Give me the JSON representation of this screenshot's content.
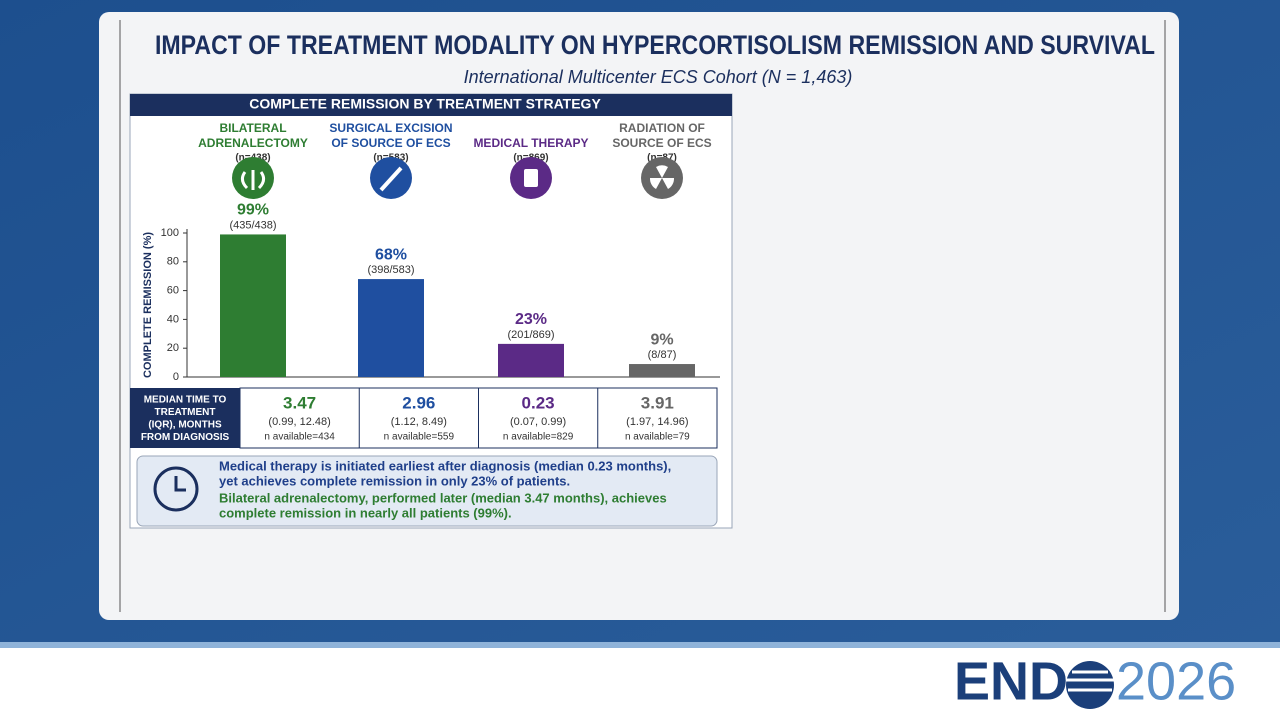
{
  "slide": {
    "title": "IMPACT OF TREATMENT MODALITY ON HYPERCORTISOLISM REMISSION AND SURVIVAL",
    "subtitle": "International Multicenter ECS Cohort (N = 1,463)"
  },
  "chart_data": {
    "type": "bar",
    "title": "COMPLETE REMISSION BY TREATMENT STRATEGY",
    "y_label": "COMPLETE REMISSION (%)",
    "categories": [
      [
        "BILATERAL",
        "ADRENALECTOMY"
      ],
      [
        "SURGICAL EXCISION",
        "OF SOURCE OF ECS"
      ],
      [
        "MEDICAL THERAPY"
      ],
      [
        "RADIATION OF",
        "SOURCE OF ECS"
      ]
    ],
    "category_counts": [
      "(n=438)",
      "(n=583)",
      "(n=869)",
      "(n=87)"
    ],
    "values": [
      99,
      68,
      23,
      9
    ],
    "value_labels": [
      "99%",
      "68%",
      "23%",
      "9%"
    ],
    "value_sublabels": [
      "(435/438)",
      "(398/583)",
      "(201/869)",
      "(8/87)"
    ],
    "colors": [
      "#2e7d32",
      "#1f4fa0",
      "#5b2a86",
      "#666666"
    ],
    "ylim": [
      0,
      100
    ],
    "yticks": [
      0,
      20,
      40,
      60,
      80,
      100
    ]
  },
  "table": {
    "header": [
      "MEDIAN TIME TO",
      "TREATMENT",
      "(IQR), MONTHS",
      "FROM DIAGNOSIS"
    ],
    "cells": [
      {
        "median": 3.47,
        "iqr": "(0.99, 12.48)",
        "available": "n available=434"
      },
      {
        "median": 2.96,
        "iqr": "(1.12, 8.49)",
        "available": "n available=559"
      },
      {
        "median": 0.23,
        "iqr": "(0.07, 0.99)",
        "available": "n available=829"
      },
      {
        "median": 3.91,
        "iqr": "(1.97, 14.96)",
        "available": "n available=79"
      }
    ]
  },
  "note": {
    "lines": [
      [
        "Medical therapy is initiated earliest after diagnosis (median 0.23 months),",
        "yet achieves complete remission in only 23% of patients."
      ],
      [
        "Bilateral adrenalectomy, performed later (median 3.47 months), achieves",
        "complete remission in nearly all patients (99%)."
      ]
    ]
  },
  "logo": {
    "left": "END",
    "right": "2026"
  }
}
